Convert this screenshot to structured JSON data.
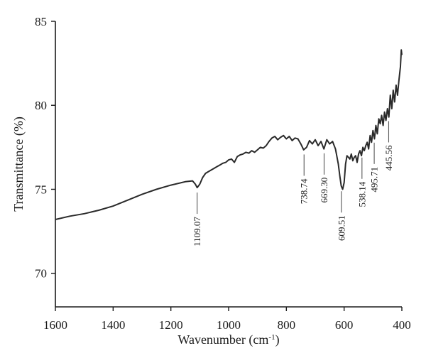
{
  "chart_data": {
    "type": "line",
    "title": "",
    "xlabel": "Wavenumber (cm",
    "xlabel_sup": "-1",
    "xlabel_end": ")",
    "ylabel": "Transmittance (%)",
    "xlim": [
      1600,
      400
    ],
    "ylim": [
      68,
      85
    ],
    "x_ticks": [
      1600,
      1400,
      1200,
      1000,
      800,
      600,
      400
    ],
    "x_tick_labels": [
      "1600",
      "1400",
      "1200",
      "1000",
      "800",
      "600",
      "400"
    ],
    "y_ticks": [
      70,
      75,
      80,
      85
    ],
    "y_tick_labels": [
      "70",
      "75",
      "80",
      "85"
    ],
    "grid": false,
    "series": [
      {
        "x": [
          1600,
          1550,
          1500,
          1450,
          1400,
          1350,
          1300,
          1250,
          1200,
          1150,
          1125,
          1115,
          1109,
          1100,
          1090,
          1080,
          1070,
          1060,
          1050,
          1040,
          1030,
          1020,
          1010,
          1000,
          990,
          980,
          970,
          960,
          950,
          940,
          930,
          920,
          910,
          900,
          890,
          880,
          870,
          860,
          850,
          840,
          830,
          820,
          810,
          800,
          790,
          780,
          770,
          760,
          750,
          740,
          730,
          720,
          710,
          700,
          690,
          680,
          670,
          660,
          650,
          640,
          630,
          620,
          615,
          610,
          605,
          600,
          595,
          590,
          585,
          580,
          575,
          570,
          565,
          560,
          555,
          550,
          545,
          540,
          535,
          530,
          525,
          520,
          515,
          510,
          505,
          500,
          495,
          490,
          485,
          480,
          475,
          470,
          465,
          460,
          455,
          450,
          445,
          440,
          435,
          430,
          425,
          420,
          415,
          410,
          405,
          402,
          400
        ],
        "y": [
          73.2,
          73.4,
          73.55,
          73.75,
          74.0,
          74.35,
          74.7,
          75.0,
          75.25,
          75.45,
          75.5,
          75.3,
          75.1,
          75.3,
          75.7,
          75.95,
          76.05,
          76.15,
          76.25,
          76.35,
          76.45,
          76.55,
          76.6,
          76.75,
          76.8,
          76.6,
          76.95,
          77.05,
          77.1,
          77.2,
          77.15,
          77.3,
          77.2,
          77.35,
          77.5,
          77.45,
          77.6,
          77.85,
          78.05,
          78.15,
          77.95,
          78.1,
          78.2,
          78.0,
          78.15,
          77.9,
          78.05,
          78.0,
          77.7,
          77.35,
          77.5,
          77.9,
          77.7,
          77.95,
          77.6,
          77.85,
          77.4,
          77.95,
          77.7,
          77.85,
          77.4,
          76.5,
          75.8,
          75.2,
          75.0,
          75.4,
          76.5,
          77.0,
          76.9,
          76.8,
          77.1,
          76.7,
          76.9,
          77.0,
          76.6,
          77.1,
          77.3,
          77.0,
          77.5,
          77.3,
          77.6,
          77.8,
          77.4,
          78.2,
          77.8,
          78.5,
          78.0,
          78.8,
          78.3,
          79.2,
          78.9,
          79.4,
          78.8,
          79.6,
          79.1,
          79.8,
          79.3,
          80.6,
          79.8,
          80.9,
          80.2,
          81.2,
          80.6,
          81.5,
          82.3,
          83.3,
          83.0
        ]
      }
    ],
    "annotations": [
      {
        "x": 1109.07,
        "label": "1109.07",
        "side": "below"
      },
      {
        "x": 738.74,
        "label": "738.74",
        "side": "below"
      },
      {
        "x": 669.3,
        "label": "669.30",
        "side": "below"
      },
      {
        "x": 609.51,
        "label": "609.51",
        "side": "below"
      },
      {
        "x": 538.14,
        "label": "538.14",
        "side": "below"
      },
      {
        "x": 495.71,
        "label": "495.71",
        "side": "below"
      },
      {
        "x": 445.56,
        "label": "445.56",
        "side": "below"
      }
    ],
    "colors": {
      "line": "#2a2a2a",
      "axis": "#1a1a1a"
    }
  }
}
